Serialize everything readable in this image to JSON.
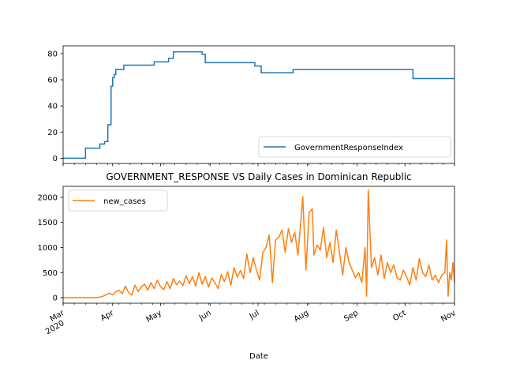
{
  "chart_data": [
    {
      "type": "line",
      "title": "",
      "xlabel": "",
      "ylabel": "",
      "ylim": [
        -4,
        86
      ],
      "yticks": [
        0,
        20,
        40,
        60,
        80
      ],
      "legend": {
        "placement": "lower-right",
        "entries": [
          "GovernmentResponseIndex"
        ]
      },
      "grid": false,
      "series": [
        {
          "name": "GovernmentResponseIndex",
          "color": "#1f77b4",
          "step": true,
          "points": [
            [
              "2020-03-01",
              0
            ],
            [
              "2020-03-15",
              7.7
            ],
            [
              "2020-03-24",
              10.9
            ],
            [
              "2020-03-27",
              12.8
            ],
            [
              "2020-03-29",
              25.6
            ],
            [
              "2020-03-31",
              55.1
            ],
            [
              "2020-04-01",
              61.5
            ],
            [
              "2020-04-02",
              64.1
            ],
            [
              "2020-04-03",
              67.9
            ],
            [
              "2020-04-08",
              71.2
            ],
            [
              "2020-04-27",
              73.7
            ],
            [
              "2020-05-06",
              76.3
            ],
            [
              "2020-05-09",
              81.4
            ],
            [
              "2020-05-27",
              79.5
            ],
            [
              "2020-05-29",
              73.1
            ],
            [
              "2020-06-29",
              70.5
            ],
            [
              "2020-07-03",
              65.4
            ],
            [
              "2020-07-23",
              67.9
            ],
            [
              "2020-10-06",
              60.9
            ],
            [
              "2020-11-01",
              60.9
            ]
          ]
        }
      ]
    },
    {
      "type": "line",
      "title": "GOVERNMENT_RESPONSE VS Daily Cases in Dominican Republic",
      "xlabel": "Date",
      "ylabel": "",
      "ylim": [
        -110,
        2220
      ],
      "yticks": [
        0,
        500,
        1000,
        1500,
        2000
      ],
      "xlim": [
        "2020-03-01",
        "2020-11-01"
      ],
      "xticks": [
        {
          "date": "2020-03-01",
          "label": "Mar",
          "sublabel": "2020"
        },
        {
          "date": "2020-04-01",
          "label": "Apr"
        },
        {
          "date": "2020-05-01",
          "label": "May"
        },
        {
          "date": "2020-06-01",
          "label": "Jun"
        },
        {
          "date": "2020-07-01",
          "label": "Jul"
        },
        {
          "date": "2020-08-01",
          "label": "Aug"
        },
        {
          "date": "2020-09-01",
          "label": "Sep"
        },
        {
          "date": "2020-10-01",
          "label": "Oct"
        },
        {
          "date": "2020-11-01",
          "label": "Nov"
        }
      ],
      "legend": {
        "placement": "upper-left",
        "entries": [
          "new_cases"
        ]
      },
      "grid": false,
      "series": [
        {
          "name": "new_cases",
          "color": "#ff7f0e",
          "points": [
            [
              "2020-03-01",
              0
            ],
            [
              "2020-03-20",
              0
            ],
            [
              "2020-03-22",
              5
            ],
            [
              "2020-03-24",
              10
            ],
            [
              "2020-03-26",
              30
            ],
            [
              "2020-03-28",
              60
            ],
            [
              "2020-03-30",
              90
            ],
            [
              "2020-04-01",
              60
            ],
            [
              "2020-04-03",
              120
            ],
            [
              "2020-04-05",
              150
            ],
            [
              "2020-04-07",
              80
            ],
            [
              "2020-04-09",
              230
            ],
            [
              "2020-04-11",
              100
            ],
            [
              "2020-04-13",
              50
            ],
            [
              "2020-04-15",
              250
            ],
            [
              "2020-04-17",
              120
            ],
            [
              "2020-04-19",
              220
            ],
            [
              "2020-04-21",
              270
            ],
            [
              "2020-04-23",
              150
            ],
            [
              "2020-04-25",
              300
            ],
            [
              "2020-04-27",
              180
            ],
            [
              "2020-04-29",
              350
            ],
            [
              "2020-05-01",
              220
            ],
            [
              "2020-05-03",
              160
            ],
            [
              "2020-05-05",
              320
            ],
            [
              "2020-05-07",
              180
            ],
            [
              "2020-05-09",
              380
            ],
            [
              "2020-05-11",
              260
            ],
            [
              "2020-05-13",
              330
            ],
            [
              "2020-05-15",
              240
            ],
            [
              "2020-05-17",
              440
            ],
            [
              "2020-05-19",
              280
            ],
            [
              "2020-05-21",
              420
            ],
            [
              "2020-05-23",
              230
            ],
            [
              "2020-05-25",
              500
            ],
            [
              "2020-05-27",
              270
            ],
            [
              "2020-05-29",
              420
            ],
            [
              "2020-05-31",
              210
            ],
            [
              "2020-06-02",
              390
            ],
            [
              "2020-06-04",
              300
            ],
            [
              "2020-06-06",
              180
            ],
            [
              "2020-06-08",
              460
            ],
            [
              "2020-06-10",
              320
            ],
            [
              "2020-06-12",
              520
            ],
            [
              "2020-06-14",
              250
            ],
            [
              "2020-06-16",
              600
            ],
            [
              "2020-06-18",
              410
            ],
            [
              "2020-06-20",
              540
            ],
            [
              "2020-06-22",
              380
            ],
            [
              "2020-06-24",
              870
            ],
            [
              "2020-06-26",
              500
            ],
            [
              "2020-06-28",
              800
            ],
            [
              "2020-06-30",
              550
            ],
            [
              "2020-07-02",
              350
            ],
            [
              "2020-07-04",
              900
            ],
            [
              "2020-07-06",
              1000
            ],
            [
              "2020-07-08",
              1250
            ],
            [
              "2020-07-10",
              300
            ],
            [
              "2020-07-12",
              1150
            ],
            [
              "2020-07-14",
              1200
            ],
            [
              "2020-07-16",
              1350
            ],
            [
              "2020-07-18",
              900
            ],
            [
              "2020-07-20",
              1380
            ],
            [
              "2020-07-22",
              1100
            ],
            [
              "2020-07-24",
              1300
            ],
            [
              "2020-07-26",
              850
            ],
            [
              "2020-07-28",
              1600
            ],
            [
              "2020-07-29",
              2020
            ],
            [
              "2020-07-31",
              550
            ],
            [
              "2020-08-02",
              1700
            ],
            [
              "2020-08-04",
              1770
            ],
            [
              "2020-08-05",
              850
            ],
            [
              "2020-08-07",
              1050
            ],
            [
              "2020-08-09",
              950
            ],
            [
              "2020-08-11",
              1400
            ],
            [
              "2020-08-13",
              800
            ],
            [
              "2020-08-15",
              1100
            ],
            [
              "2020-08-17",
              700
            ],
            [
              "2020-08-19",
              1350
            ],
            [
              "2020-08-21",
              900
            ],
            [
              "2020-08-23",
              450
            ],
            [
              "2020-08-25",
              1000
            ],
            [
              "2020-08-27",
              700
            ],
            [
              "2020-08-29",
              550
            ],
            [
              "2020-08-31",
              400
            ],
            [
              "2020-09-02",
              500
            ],
            [
              "2020-09-04",
              300
            ],
            [
              "2020-09-06",
              1000
            ],
            [
              "2020-09-07",
              30
            ],
            [
              "2020-09-08",
              2150
            ],
            [
              "2020-09-10",
              600
            ],
            [
              "2020-09-12",
              800
            ],
            [
              "2020-09-14",
              450
            ],
            [
              "2020-09-16",
              850
            ],
            [
              "2020-09-18",
              380
            ],
            [
              "2020-09-20",
              700
            ],
            [
              "2020-09-22",
              500
            ],
            [
              "2020-09-24",
              650
            ],
            [
              "2020-09-26",
              400
            ],
            [
              "2020-09-28",
              350
            ],
            [
              "2020-09-30",
              550
            ],
            [
              "2020-10-02",
              420
            ],
            [
              "2020-10-04",
              250
            ],
            [
              "2020-10-06",
              600
            ],
            [
              "2020-10-08",
              350
            ],
            [
              "2020-10-10",
              780
            ],
            [
              "2020-10-12",
              500
            ],
            [
              "2020-10-14",
              420
            ],
            [
              "2020-10-16",
              650
            ],
            [
              "2020-10-18",
              350
            ],
            [
              "2020-10-20",
              450
            ],
            [
              "2020-10-22",
              300
            ],
            [
              "2020-10-24",
              450
            ],
            [
              "2020-10-26",
              500
            ],
            [
              "2020-10-27",
              1150
            ],
            [
              "2020-10-28",
              30
            ],
            [
              "2020-10-29",
              500
            ],
            [
              "2020-10-30",
              350
            ],
            [
              "2020-10-31",
              700
            ],
            [
              "2020-11-01",
              300
            ]
          ]
        }
      ]
    }
  ]
}
